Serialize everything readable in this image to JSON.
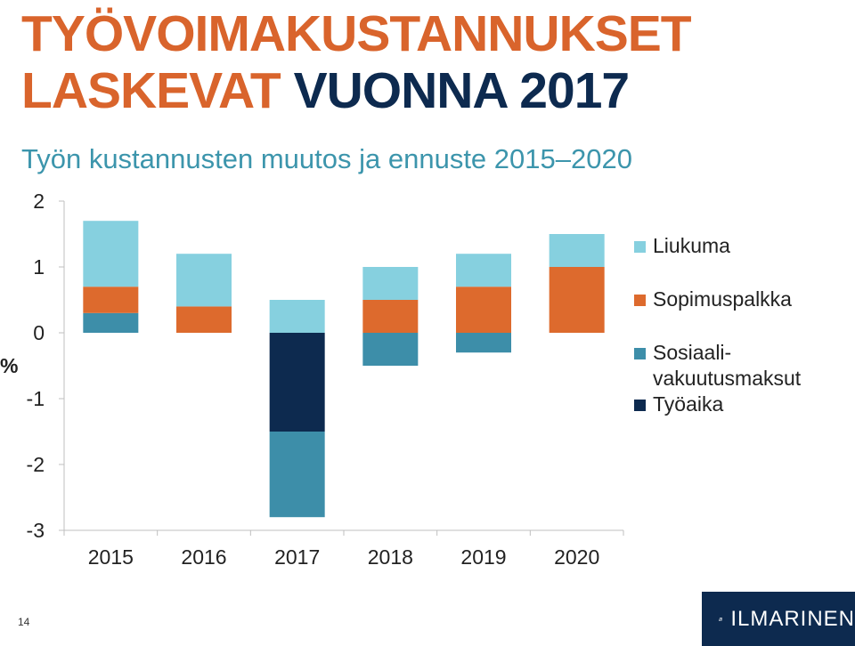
{
  "slide": {
    "title_part1": "TYÖVOIMAKUSTANNUKSET",
    "title_part2": "LASKEVAT",
    "title_part3": "VUONNA 2017",
    "subtitle": "Työn kustannusten muutos ja ennuste 2015–2020",
    "page_number": "14"
  },
  "logo": {
    "text": "ILMARINEN"
  },
  "colors": {
    "title_orange": "#d9642c",
    "title_navy": "#0d2a4f",
    "subtitle_teal": "#3c95ac"
  },
  "chart_data": {
    "type": "bar",
    "stacked": true,
    "categories": [
      "2015",
      "2016",
      "2017",
      "2018",
      "2019",
      "2020"
    ],
    "ylabel": "%",
    "ylim": [
      -3,
      2
    ],
    "yticks": [
      "2",
      "1",
      "0",
      "-1",
      "-2",
      "-3"
    ],
    "grid": false,
    "legend_position": "right",
    "series": [
      {
        "name": "Liukuma",
        "color": "#86d0df",
        "values": [
          1.0,
          0.8,
          0.5,
          0.5,
          0.5,
          0.5
        ]
      },
      {
        "name": "Sopimuspalkka",
        "color": "#dd6a2d",
        "values": [
          0.4,
          0.4,
          0.0,
          0.5,
          0.7,
          1.0
        ]
      },
      {
        "name": "Sosiaali-\nvakuutusmaksut",
        "color": "#3d8ea9",
        "values": [
          0.3,
          0.0,
          -1.3,
          -0.5,
          -0.3,
          0.0
        ]
      },
      {
        "name": "Työaika",
        "color": "#0d2a4f",
        "values": [
          0.0,
          0.0,
          -1.5,
          0.0,
          0.0,
          0.0
        ]
      }
    ]
  }
}
